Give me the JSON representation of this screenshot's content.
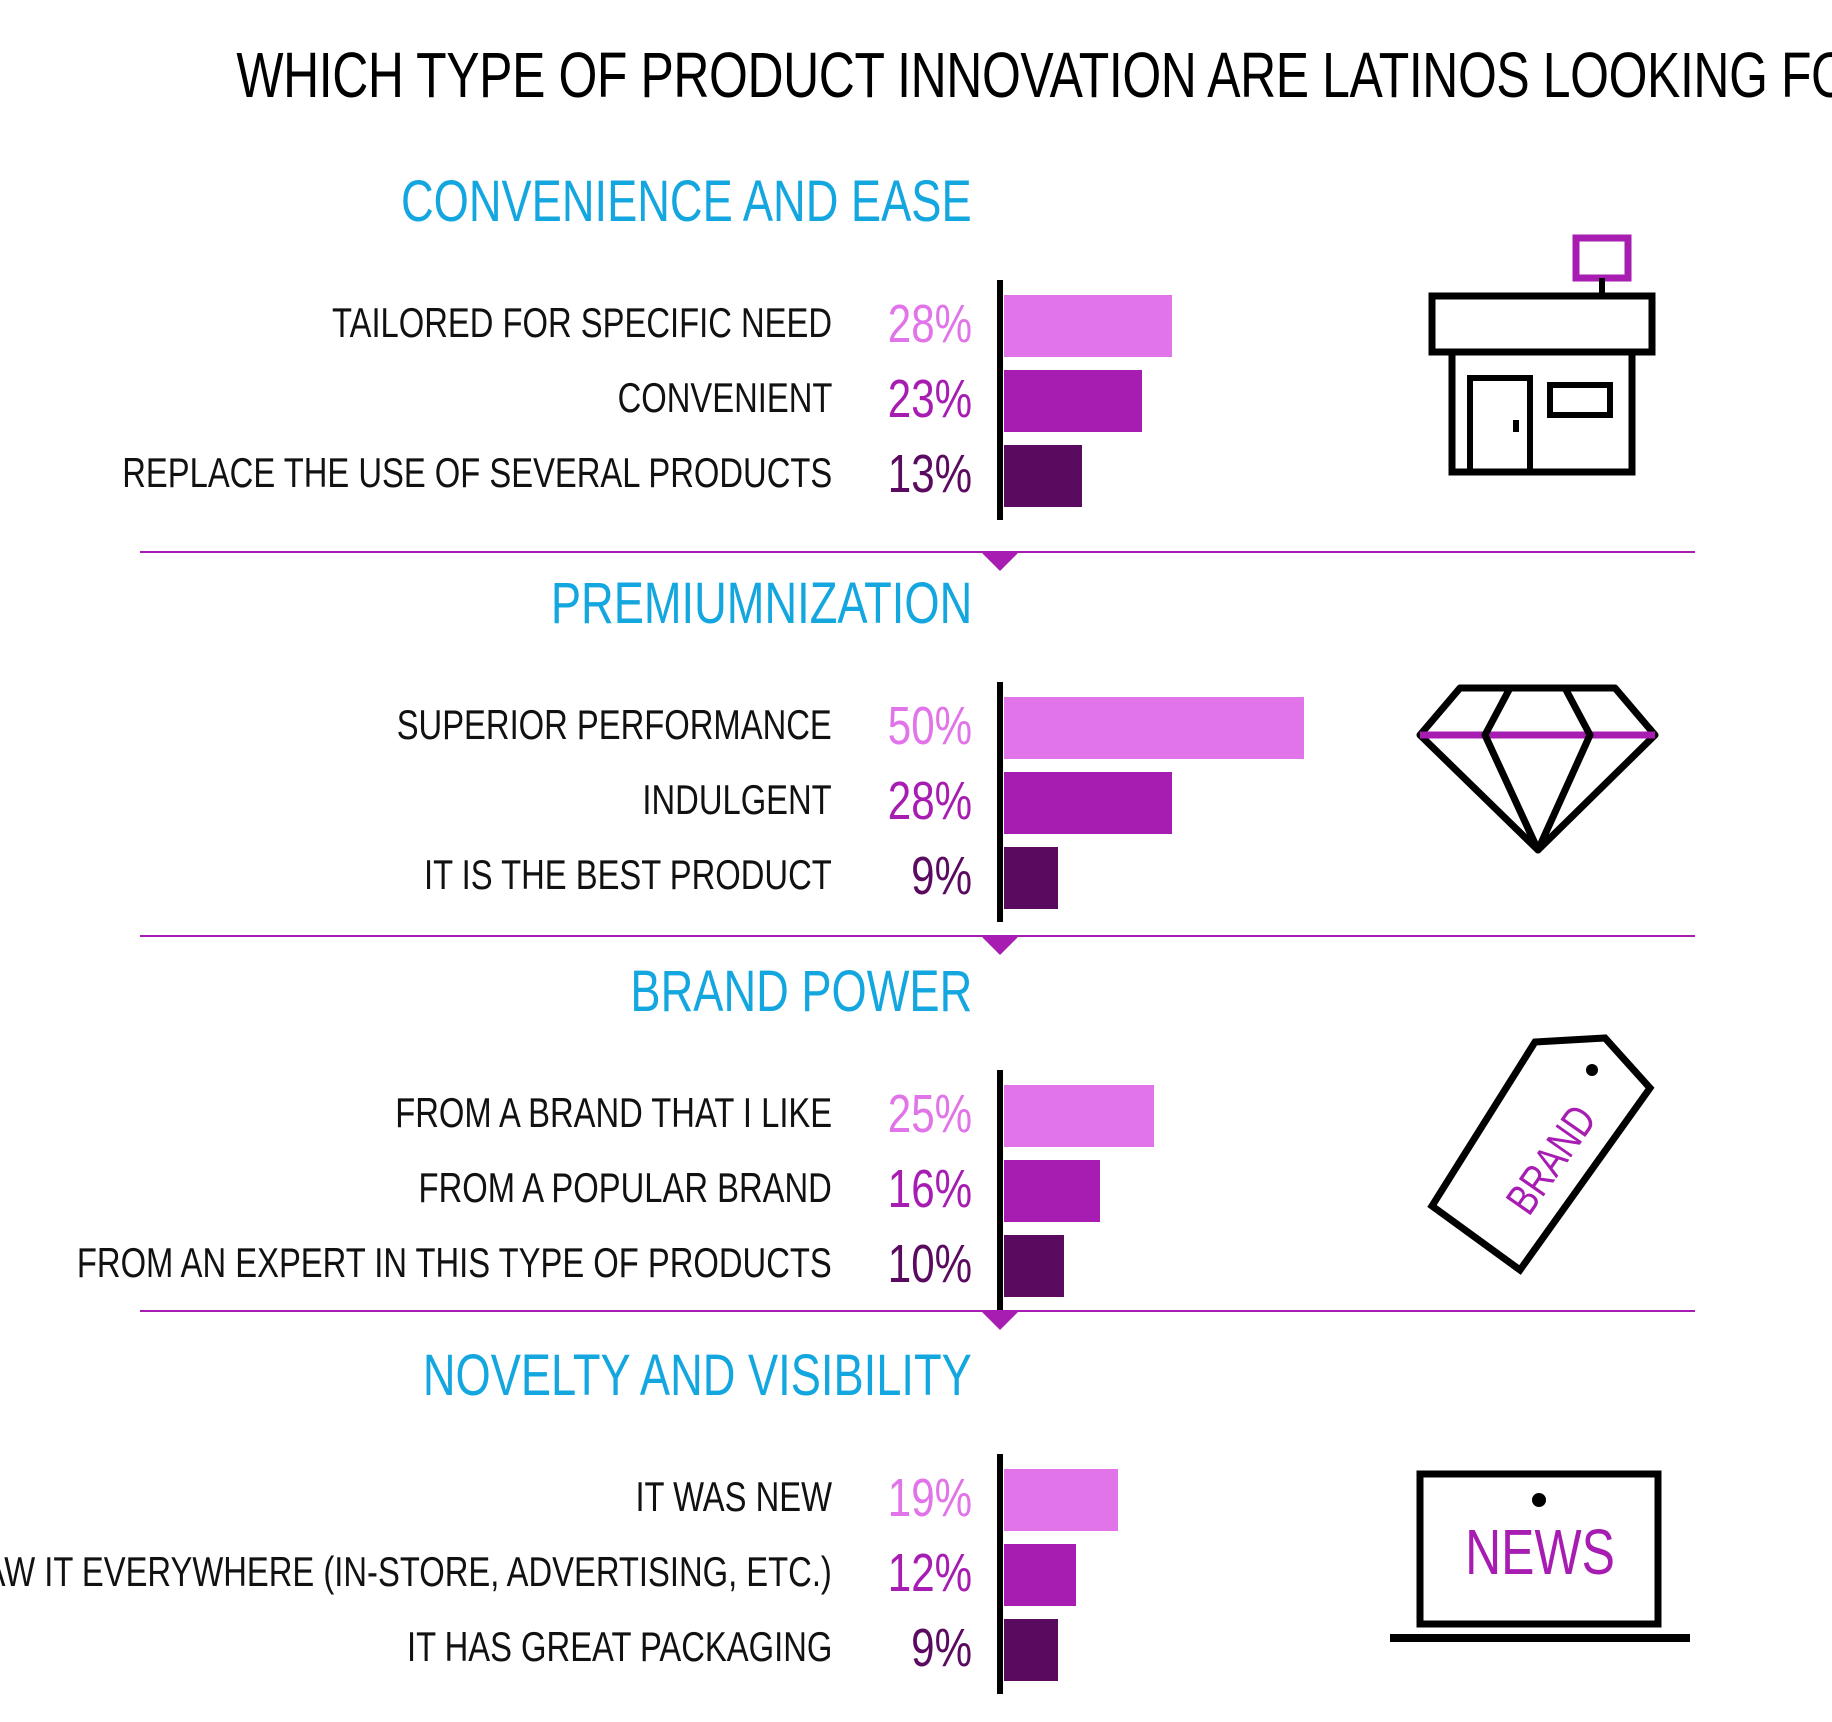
{
  "title": "WHICH TYPE OF PRODUCT INNOVATION ARE LATINOS LOOKING FOR?",
  "colors": {
    "heading": "#14a7df",
    "bar_light": "#e174e8",
    "bar_mid": "#a71db2",
    "bar_dark": "#5a0b60",
    "divider": "#a71db2"
  },
  "icons": {
    "store": "store-icon",
    "diamond": "diamond-icon",
    "tag": "brand-tag-icon",
    "laptop": "news-laptop-icon"
  },
  "icon_text": {
    "brand": "BRAND",
    "news": "NEWS"
  },
  "chart_data": {
    "type": "bar",
    "orientation": "horizontal",
    "title": "WHICH TYPE OF PRODUCT INNOVATION ARE LATINOS LOOKING FOR?",
    "unit": "%",
    "xlim": [
      0,
      60
    ],
    "groups": [
      {
        "name": "CONVENIENCE AND EASE",
        "items": [
          {
            "label": "TAILORED FOR SPECIFIC NEED",
            "value": 28,
            "display": "28%"
          },
          {
            "label": "CONVENIENT",
            "value": 23,
            "display": "23%"
          },
          {
            "label": "REPLACE THE USE OF SEVERAL PRODUCTS",
            "value": 13,
            "display": "13%"
          }
        ]
      },
      {
        "name": "PREMIUMNIZATION",
        "items": [
          {
            "label": "SUPERIOR PERFORMANCE",
            "value": 50,
            "display": "50%"
          },
          {
            "label": "INDULGENT",
            "value": 28,
            "display": "28%"
          },
          {
            "label": "IT IS THE BEST PRODUCT",
            "value": 9,
            "display": "9%"
          }
        ]
      },
      {
        "name": "BRAND POWER",
        "items": [
          {
            "label": "FROM A BRAND THAT I LIKE",
            "value": 25,
            "display": "25%"
          },
          {
            "label": "FROM A POPULAR BRAND",
            "value": 16,
            "display": "16%"
          },
          {
            "label": "FROM AN EXPERT IN THIS TYPE OF PRODUCTS",
            "value": 10,
            "display": "10%"
          }
        ]
      },
      {
        "name": "NOVELTY AND VISIBILITY",
        "items": [
          {
            "label": "IT WAS NEW",
            "value": 19,
            "display": "19%"
          },
          {
            "label": "I SAW IT EVERYWHERE (IN-STORE, ADVERTISING, ETC.)",
            "value": 12,
            "display": "12%"
          },
          {
            "label": "IT HAS GREAT PACKAGING",
            "value": 9,
            "display": "9%"
          }
        ]
      }
    ]
  }
}
